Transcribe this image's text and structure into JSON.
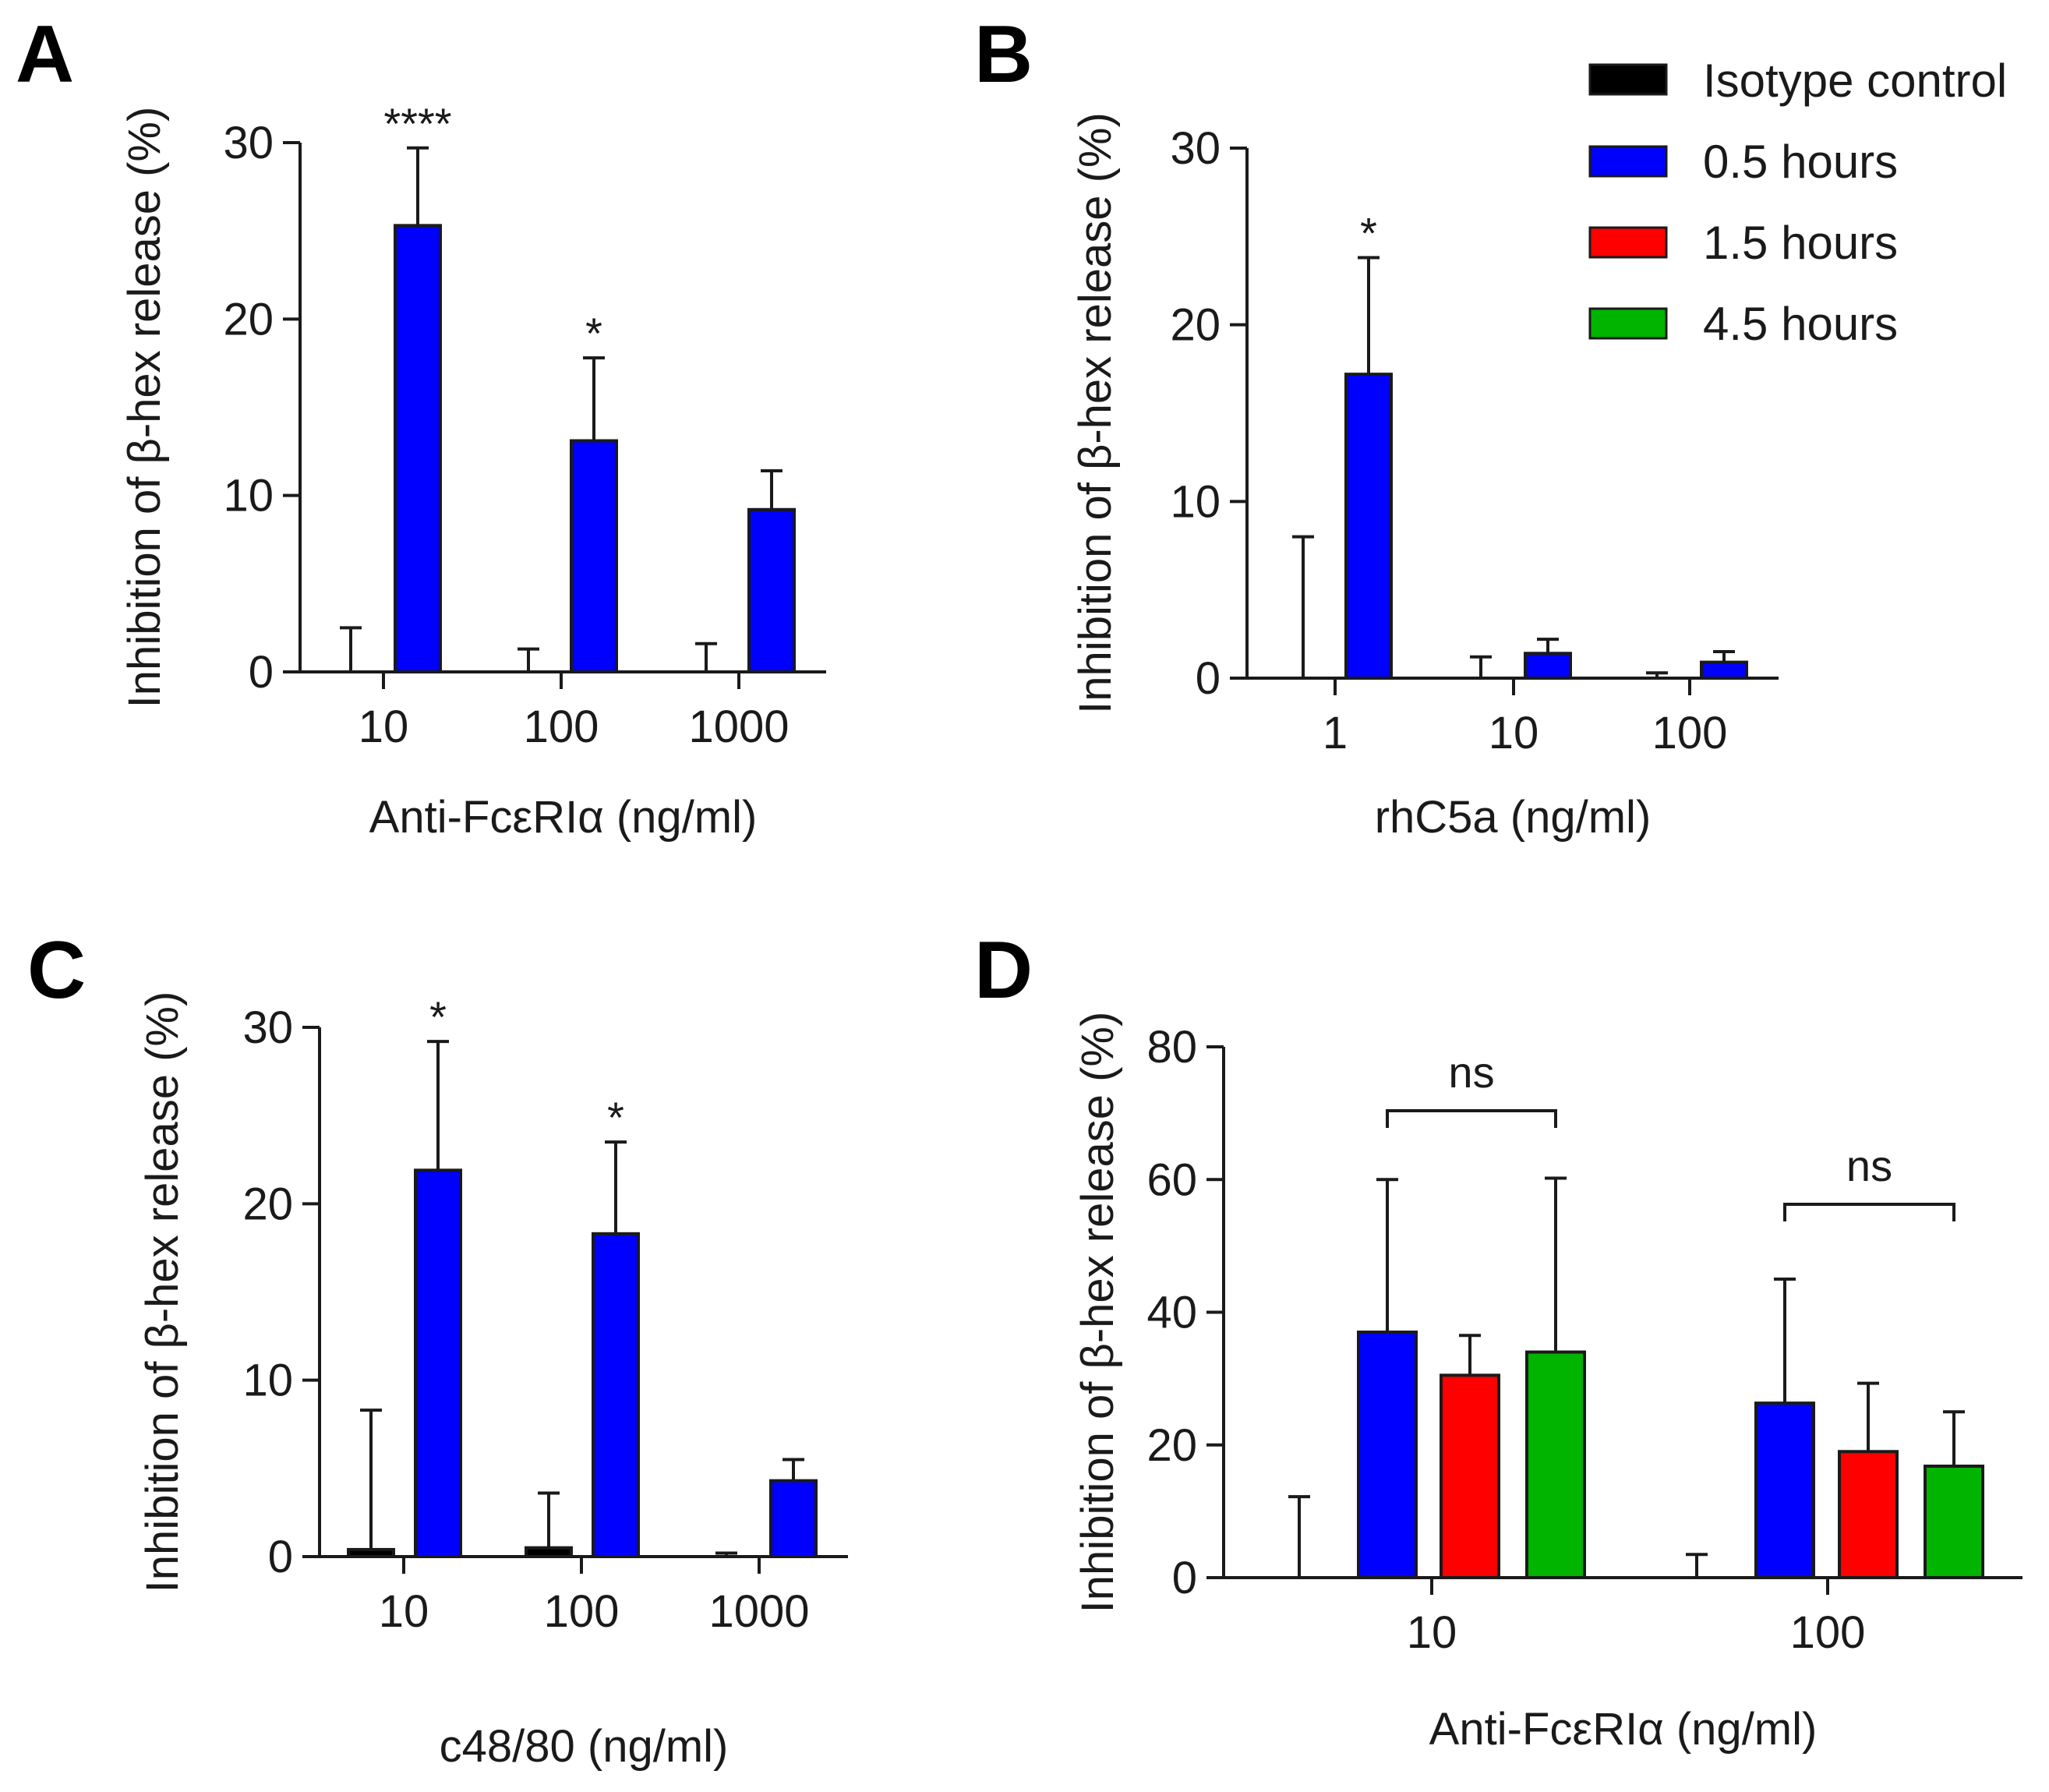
{
  "colors": {
    "Isotype control": "#000000",
    "0.5 hours": "#0000ff",
    "1.5 hours": "#ff0000",
    "4.5 hours": "#00b400"
  },
  "legend": {
    "entries": [
      "Isotype control",
      "0.5 hours",
      "1.5 hours",
      "4.5 hours"
    ]
  },
  "chart_data": [
    {
      "panel": "A",
      "type": "bar",
      "xlabel": "Anti-FcεRIα (ng/ml)",
      "ylabel": "Inhibition of β-hex release (%)",
      "categories": [
        "10",
        "100",
        "1000"
      ],
      "ylim": [
        0,
        30
      ],
      "yticks": [
        "0",
        "10",
        "20",
        "30"
      ],
      "series": [
        {
          "name": "Isotype control",
          "values": [
            0,
            0,
            0
          ],
          "errors": [
            2.5,
            1.3,
            1.6
          ]
        },
        {
          "name": "0.5 hours",
          "values": [
            25.3,
            13.1,
            9.2
          ],
          "errors": [
            4.4,
            4.7,
            2.2
          ]
        }
      ],
      "annotations": [
        {
          "category": 0,
          "series": 1,
          "text": "****"
        },
        {
          "category": 1,
          "series": 1,
          "text": "*"
        }
      ]
    },
    {
      "panel": "B",
      "type": "bar",
      "xlabel": "rhC5a (ng/ml)",
      "ylabel": "Inhibition of β-hex release (%)",
      "categories": [
        "1",
        "10",
        "100"
      ],
      "ylim": [
        0,
        30
      ],
      "yticks": [
        "0",
        "10",
        "20",
        "30"
      ],
      "series": [
        {
          "name": "Isotype control",
          "values": [
            0,
            0,
            0
          ],
          "errors": [
            8.0,
            1.2,
            0.3
          ]
        },
        {
          "name": "0.5 hours",
          "values": [
            17.2,
            1.4,
            0.9
          ],
          "errors": [
            6.6,
            0.8,
            0.6
          ]
        }
      ],
      "annotations": [
        {
          "category": 0,
          "series": 1,
          "text": "*"
        }
      ]
    },
    {
      "panel": "C",
      "type": "bar",
      "xlabel": "c48/80 (ng/ml)",
      "ylabel": "Inhibition of β-hex release (%)",
      "categories": [
        "10",
        "100",
        "1000"
      ],
      "ylim": [
        0,
        30
      ],
      "yticks": [
        "0",
        "10",
        "20",
        "30"
      ],
      "series": [
        {
          "name": "Isotype control",
          "values": [
            0.4,
            0.5,
            0
          ],
          "errors": [
            7.9,
            3.1,
            0.2
          ]
        },
        {
          "name": "0.5 hours",
          "values": [
            21.9,
            18.3,
            4.3
          ],
          "errors": [
            7.3,
            5.2,
            1.2
          ]
        }
      ],
      "annotations": [
        {
          "category": 0,
          "series": 1,
          "text": "*"
        },
        {
          "category": 1,
          "series": 1,
          "text": "*"
        }
      ]
    },
    {
      "panel": "D",
      "type": "bar",
      "xlabel": "Anti-FcεRIα (ng/ml)",
      "ylabel": "Inhibition of β-hex release (%)",
      "categories": [
        "10",
        "100"
      ],
      "ylim": [
        0,
        80
      ],
      "yticks": [
        "0",
        "20",
        "40",
        "60",
        "80"
      ],
      "series": [
        {
          "name": "Isotype control",
          "values": [
            0,
            0
          ],
          "errors": [
            12.2,
            3.5
          ]
        },
        {
          "name": "0.5 hours",
          "values": [
            37,
            26.3
          ],
          "errors": [
            23,
            18.7
          ]
        },
        {
          "name": "1.5 hours",
          "values": [
            30.5,
            19
          ],
          "errors": [
            6,
            10.3
          ]
        },
        {
          "name": "4.5 hours",
          "values": [
            34,
            16.8
          ],
          "errors": [
            26.2,
            8.2
          ]
        }
      ],
      "brackets": [
        {
          "category": 0,
          "from_series": 1,
          "to_series": 3,
          "text": "ns"
        },
        {
          "category": 1,
          "from_series": 1,
          "to_series": 3,
          "text": "ns"
        }
      ]
    }
  ],
  "panel_labels": [
    "A",
    "B",
    "C",
    "D"
  ]
}
